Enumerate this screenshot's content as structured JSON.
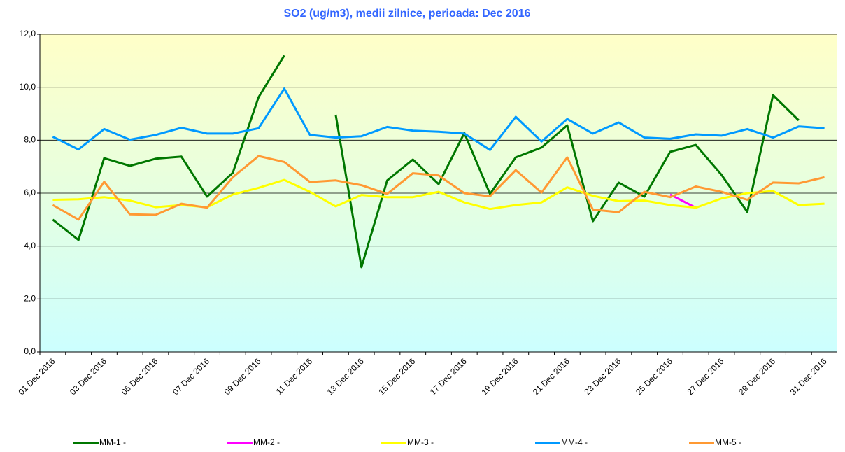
{
  "chart_data": {
    "type": "line",
    "title": "SO2 (ug/m3), medii zilnice, perioada:  Dec 2016",
    "categories": [
      "01 Dec 2016",
      null,
      "03 Dec 2016",
      null,
      "05 Dec 2016",
      null,
      "07 Dec 2016",
      null,
      "09 Dec 2016",
      null,
      "11 Dec 2016",
      null,
      "13 Dec 2016",
      null,
      "15 Dec 2016",
      null,
      "17 Dec 2016",
      null,
      "19 Dec 2016",
      null,
      "21 Dec 2016",
      null,
      "23 Dec 2016",
      null,
      "25 Dec 2016",
      null,
      "27 Dec 2016",
      null,
      "29 Dec 2016",
      null,
      "31 Dec 2016"
    ],
    "ylim": [
      0,
      12
    ],
    "yticks": [
      {
        "value": 0,
        "label": "0,0"
      },
      {
        "value": 2,
        "label": "2,0"
      },
      {
        "value": 4,
        "label": "4,0"
      },
      {
        "value": 6,
        "label": "6,0"
      },
      {
        "value": 8,
        "label": "8,0"
      },
      {
        "value": 10,
        "label": "10,0"
      },
      {
        "value": 12,
        "label": "12,0"
      }
    ],
    "grid": true,
    "series": [
      {
        "name": "MM-1 -",
        "color": "#007700",
        "values": [
          5.0,
          4.23,
          7.32,
          7.03,
          7.3,
          7.38,
          5.87,
          6.77,
          9.62,
          11.2,
          null,
          8.96,
          3.2,
          6.48,
          7.27,
          6.34,
          8.27,
          5.97,
          7.35,
          7.72,
          8.56,
          4.94,
          6.4,
          5.87,
          7.56,
          7.82,
          6.69,
          5.29,
          9.7,
          8.75,
          null
        ]
      },
      {
        "name": "MM-2 -",
        "color": "#ff00ff",
        "values": [
          null,
          null,
          null,
          null,
          null,
          null,
          null,
          null,
          null,
          null,
          null,
          null,
          null,
          null,
          null,
          null,
          null,
          null,
          null,
          null,
          null,
          null,
          null,
          null,
          5.95,
          5.45,
          null,
          null,
          null,
          null,
          null
        ]
      },
      {
        "name": "MM-3 -",
        "color": "#ffff00",
        "values": [
          5.75,
          5.77,
          5.85,
          5.72,
          5.47,
          5.55,
          5.47,
          5.95,
          6.2,
          6.5,
          6.05,
          5.5,
          5.93,
          5.85,
          5.85,
          6.05,
          5.65,
          5.4,
          5.55,
          5.65,
          6.22,
          5.9,
          5.7,
          5.72,
          5.55,
          5.45,
          5.8,
          6.0,
          6.08,
          5.55,
          5.6
        ]
      },
      {
        "name": "MM-4 -",
        "color": "#0099ff",
        "values": [
          8.13,
          7.65,
          8.42,
          8.02,
          8.2,
          8.47,
          8.25,
          8.25,
          8.45,
          9.95,
          8.2,
          8.1,
          8.15,
          8.5,
          8.36,
          8.32,
          8.25,
          7.63,
          8.88,
          7.95,
          8.8,
          8.25,
          8.67,
          8.1,
          8.05,
          8.22,
          8.17,
          8.42,
          8.1,
          8.52,
          8.45
        ]
      },
      {
        "name": "MM-5 -",
        "color": "#ff9933",
        "values": [
          5.55,
          5.0,
          6.43,
          5.2,
          5.18,
          5.6,
          5.45,
          6.6,
          7.4,
          7.18,
          6.42,
          6.48,
          6.3,
          5.97,
          6.75,
          6.67,
          6.0,
          5.88,
          6.87,
          6.02,
          7.35,
          5.38,
          5.28,
          6.05,
          5.85,
          6.25,
          6.05,
          5.75,
          6.4,
          6.37,
          6.6
        ]
      }
    ]
  }
}
